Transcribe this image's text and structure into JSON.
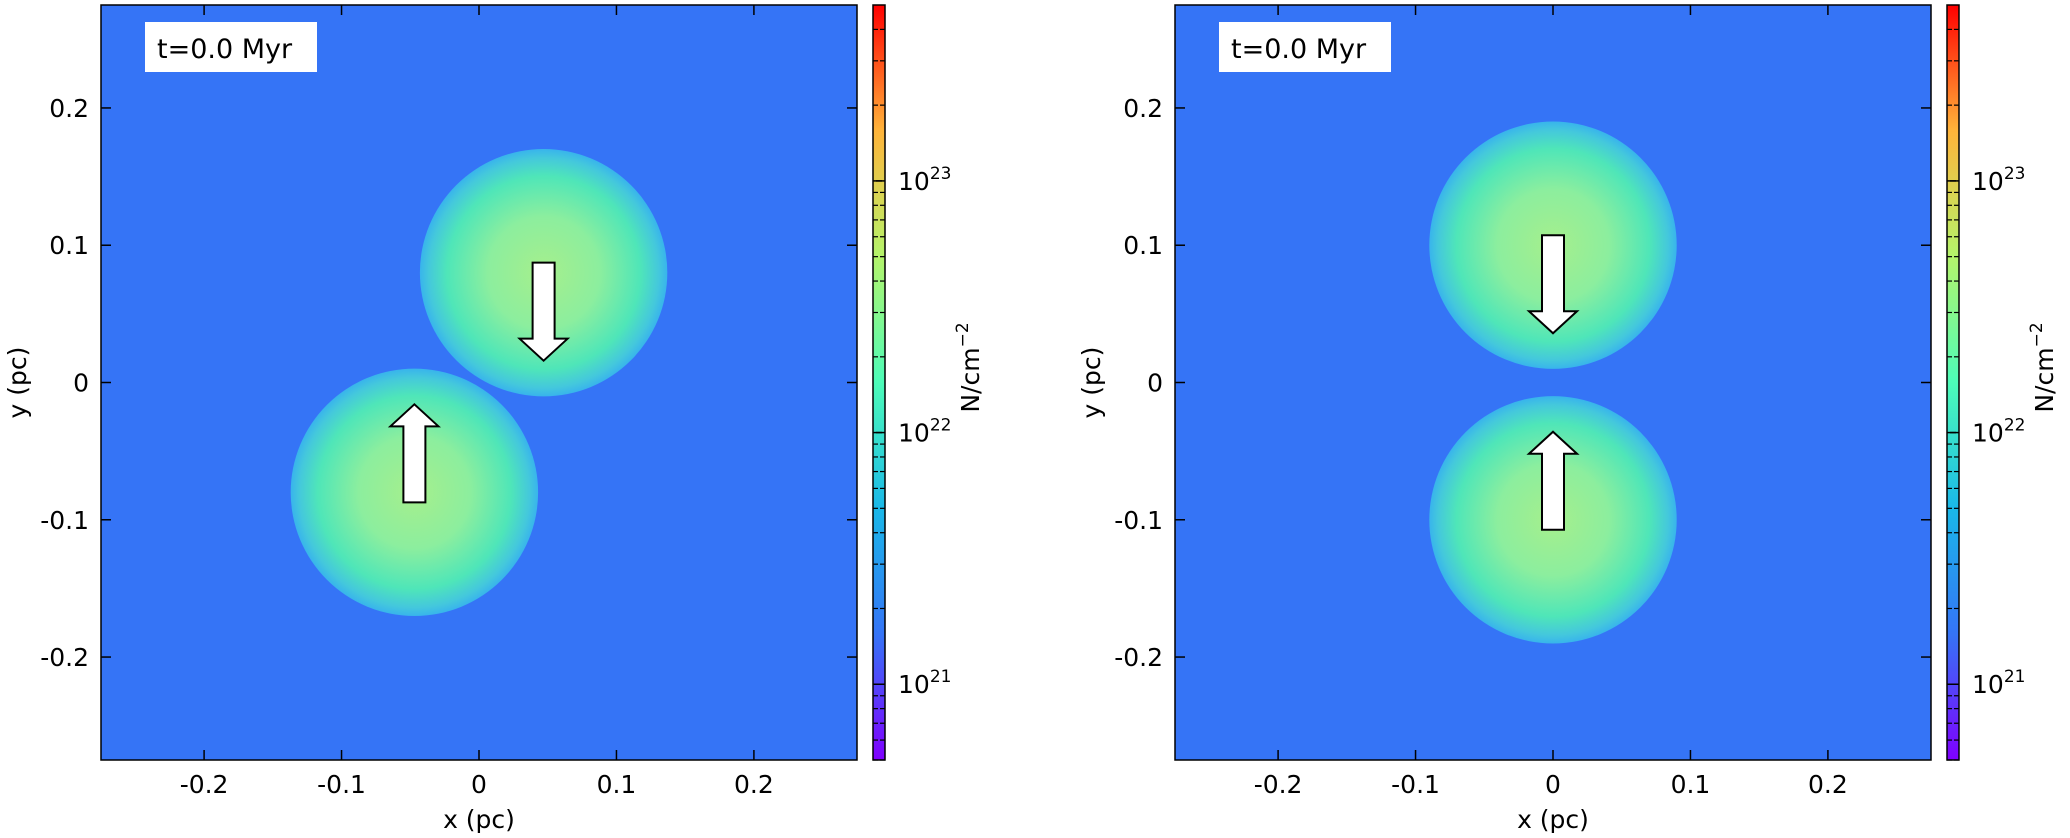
{
  "chart_data": [
    {
      "type": "heatmap",
      "time_label": "t=0.0 Myr",
      "xlabel": "x (pc)",
      "ylabel": "y (pc)",
      "xlim": [
        -0.275,
        0.275
      ],
      "ylim": [
        -0.275,
        0.275
      ],
      "xticks": [
        {
          "value": -0.2,
          "label": "-0.2"
        },
        {
          "value": -0.1,
          "label": "-0.1"
        },
        {
          "value": 0,
          "label": "0"
        },
        {
          "value": 0.1,
          "label": "0.1"
        },
        {
          "value": 0.2,
          "label": "0.2"
        }
      ],
      "yticks": [
        {
          "value": -0.2,
          "label": "-0.2"
        },
        {
          "value": -0.1,
          "label": "-0.1"
        },
        {
          "value": 0,
          "label": "0"
        },
        {
          "value": 0.1,
          "label": "0.1"
        },
        {
          "value": 0.2,
          "label": "0.2"
        }
      ],
      "clouds": [
        {
          "x": -0.047,
          "y": -0.08,
          "radius": 0.09,
          "arrow": "up"
        },
        {
          "x": 0.047,
          "y": 0.08,
          "radius": 0.09,
          "arrow": "down"
        }
      ],
      "colorbar": {
        "label_base": "N/cm",
        "label_exp": "−2",
        "scale": "log",
        "range": [
          5e+20,
          5e+23
        ],
        "ticks": [
          {
            "value": 1e+21,
            "base": "10",
            "exp": "21"
          },
          {
            "value": 1e+22,
            "base": "10",
            "exp": "22"
          },
          {
            "value": 1e+23,
            "base": "10",
            "exp": "23"
          }
        ],
        "background_value": 1.6e+21,
        "peak_value": 2.4e+22
      },
      "grid": false
    },
    {
      "type": "heatmap",
      "time_label": "t=0.0 Myr",
      "xlabel": "x (pc)",
      "ylabel": "y (pc)",
      "xlim": [
        -0.275,
        0.275
      ],
      "ylim": [
        -0.275,
        0.275
      ],
      "xticks": [
        {
          "value": -0.2,
          "label": "-0.2"
        },
        {
          "value": -0.1,
          "label": "-0.1"
        },
        {
          "value": 0,
          "label": "0"
        },
        {
          "value": 0.1,
          "label": "0.1"
        },
        {
          "value": 0.2,
          "label": "0.2"
        }
      ],
      "yticks": [
        {
          "value": -0.2,
          "label": "-0.2"
        },
        {
          "value": -0.1,
          "label": "-0.1"
        },
        {
          "value": 0,
          "label": "0"
        },
        {
          "value": 0.1,
          "label": "0.1"
        },
        {
          "value": 0.2,
          "label": "0.2"
        }
      ],
      "clouds": [
        {
          "x": 0,
          "y": 0.1,
          "radius": 0.09,
          "arrow": "down"
        },
        {
          "x": 0,
          "y": -0.1,
          "radius": 0.09,
          "arrow": "up"
        }
      ],
      "colorbar": {
        "label_base": "N/cm",
        "label_exp": "−2",
        "scale": "log",
        "range": [
          5e+20,
          5e+23
        ],
        "ticks": [
          {
            "value": 1e+21,
            "base": "10",
            "exp": "21"
          },
          {
            "value": 1e+22,
            "base": "10",
            "exp": "22"
          },
          {
            "value": 1e+23,
            "base": "10",
            "exp": "23"
          }
        ],
        "background_value": 1.6e+21,
        "peak_value": 2.4e+22
      },
      "grid": false
    }
  ],
  "colors": {
    "background": "#3574f6",
    "cloud_peak": "#a6ef8c",
    "cloud_mid": "#4fe6b8",
    "cloud_edge": "#38b4ec",
    "arrow_fill": "#ffffff",
    "arrow_stroke": "#000000",
    "colormap_stops": [
      "#7f00ff",
      "#3574f6",
      "#1ab8e8",
      "#4dfcb8",
      "#b4f46b",
      "#ffb43a",
      "#ff0000"
    ]
  }
}
